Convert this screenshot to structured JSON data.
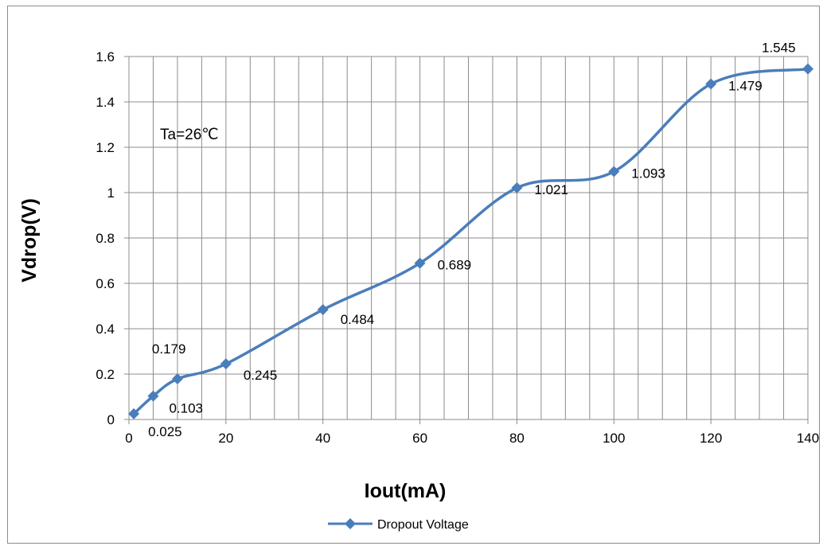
{
  "chart_data": {
    "type": "line",
    "title": "",
    "xlabel": "Iout(mA)",
    "ylabel": "Vdrop(V)",
    "xlim": [
      0,
      140
    ],
    "ylim": [
      0,
      1.6
    ],
    "x_ticks": [
      "0",
      "20",
      "40",
      "60",
      "80",
      "100",
      "120",
      "140"
    ],
    "y_ticks": [
      "0",
      "0.2",
      "0.4",
      "0.6",
      "0.8",
      "1",
      "1.2",
      "1.4",
      "1.6"
    ],
    "grid": true,
    "legend_position": "bottom",
    "annotation": "Ta=26℃",
    "series": [
      {
        "name": "Dropout Voltage",
        "color": "#4A7EBB",
        "marker": "diamond",
        "smooth": true,
        "x": [
          1,
          5,
          10,
          20,
          40,
          60,
          80,
          100,
          120,
          140
        ],
        "y": [
          0.025,
          0.103,
          0.179,
          0.245,
          0.484,
          0.689,
          1.021,
          1.093,
          1.479,
          1.545
        ],
        "labels": [
          "0.025",
          "0.103",
          "0.179",
          "0.245",
          "0.484",
          "0.689",
          "1.021",
          "1.093",
          "1.479",
          "1.545"
        ]
      }
    ]
  }
}
